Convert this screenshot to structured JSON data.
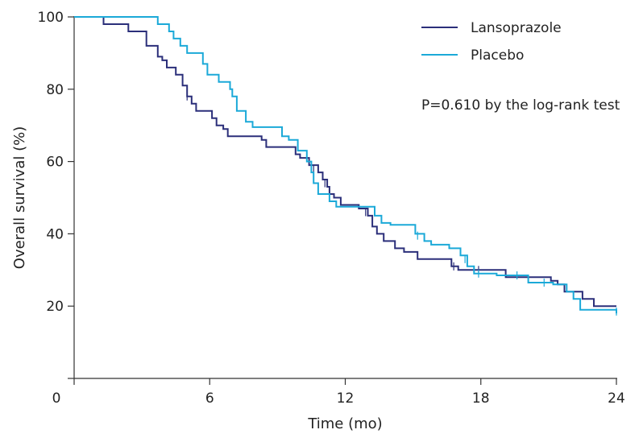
{
  "chart_data": {
    "type": "line",
    "xlabel": "Time (mo)",
    "ylabel": "Overall survival (%)",
    "xlim": [
      0,
      24
    ],
    "ylim": [
      0,
      100
    ],
    "xticks": [
      0,
      6,
      12,
      18,
      24
    ],
    "yticks": [
      20,
      40,
      60,
      80,
      100
    ],
    "x_tick_labels": [
      "0",
      "6",
      "12",
      "18",
      "24"
    ],
    "y_tick_labels": [
      "20",
      "40",
      "60",
      "80",
      "100"
    ],
    "grid": false,
    "legend": "top-right",
    "annotation": "P=0.610 by the log-rank test",
    "series": [
      {
        "name": "Lansoprazole",
        "color": "#2b2f7a",
        "step": true,
        "points": [
          [
            0,
            100
          ],
          [
            1.3,
            98
          ],
          [
            2.4,
            96
          ],
          [
            3.2,
            92
          ],
          [
            3.7,
            89
          ],
          [
            3.9,
            88
          ],
          [
            4.1,
            86
          ],
          [
            4.5,
            84
          ],
          [
            4.8,
            81
          ],
          [
            5.0,
            78
          ],
          [
            5.2,
            76
          ],
          [
            5.4,
            74
          ],
          [
            6.1,
            72
          ],
          [
            6.3,
            70
          ],
          [
            6.6,
            69
          ],
          [
            6.8,
            67
          ],
          [
            8.3,
            66
          ],
          [
            8.5,
            64
          ],
          [
            9.8,
            62
          ],
          [
            10.0,
            61
          ],
          [
            10.4,
            59
          ],
          [
            10.8,
            57
          ],
          [
            11.0,
            55
          ],
          [
            11.2,
            53
          ],
          [
            11.3,
            51
          ],
          [
            11.5,
            50
          ],
          [
            11.8,
            48
          ],
          [
            12.6,
            47
          ],
          [
            13.0,
            45
          ],
          [
            13.2,
            42
          ],
          [
            13.4,
            40
          ],
          [
            13.7,
            38
          ],
          [
            14.2,
            36
          ],
          [
            14.6,
            35
          ],
          [
            15.2,
            33
          ],
          [
            16.7,
            31
          ],
          [
            17.0,
            30
          ],
          [
            19.1,
            28
          ],
          [
            21.1,
            27
          ],
          [
            21.4,
            26
          ],
          [
            21.7,
            24
          ],
          [
            22.5,
            22
          ],
          [
            23.0,
            20
          ],
          [
            24.0,
            20
          ]
        ],
        "censored": [
          [
            5.0,
            78
          ],
          [
            10.6,
            58
          ],
          [
            11.1,
            54
          ],
          [
            12.9,
            46
          ],
          [
            16.8,
            31
          ],
          [
            17.9,
            30
          ]
        ]
      },
      {
        "name": "Placebo",
        "color": "#1ba9d8",
        "step": true,
        "points": [
          [
            0,
            100
          ],
          [
            3.7,
            98
          ],
          [
            4.2,
            96
          ],
          [
            4.4,
            94
          ],
          [
            4.7,
            92
          ],
          [
            5.0,
            90
          ],
          [
            5.7,
            87
          ],
          [
            5.9,
            84
          ],
          [
            6.4,
            82
          ],
          [
            6.9,
            80
          ],
          [
            7.0,
            78
          ],
          [
            7.2,
            74
          ],
          [
            7.6,
            71
          ],
          [
            7.9,
            69.5
          ],
          [
            9.2,
            67
          ],
          [
            9.5,
            66
          ],
          [
            9.9,
            63
          ],
          [
            10.3,
            60
          ],
          [
            10.5,
            57
          ],
          [
            10.6,
            54
          ],
          [
            10.8,
            51
          ],
          [
            11.3,
            49
          ],
          [
            11.6,
            47.5
          ],
          [
            13.3,
            45
          ],
          [
            13.6,
            43
          ],
          [
            14.0,
            42.5
          ],
          [
            15.1,
            40
          ],
          [
            15.5,
            38
          ],
          [
            15.8,
            37
          ],
          [
            16.6,
            36
          ],
          [
            17.1,
            34
          ],
          [
            17.4,
            31
          ],
          [
            17.7,
            29
          ],
          [
            18.7,
            28.5
          ],
          [
            20.1,
            26.5
          ],
          [
            21.2,
            26
          ],
          [
            21.8,
            24
          ],
          [
            22.1,
            22
          ],
          [
            22.4,
            19
          ],
          [
            24.0,
            18
          ]
        ],
        "censored": [
          [
            15.2,
            39.5
          ],
          [
            17.3,
            33
          ],
          [
            17.9,
            29
          ],
          [
            19.6,
            28.5
          ],
          [
            20.8,
            26.5
          ],
          [
            24.0,
            18.5
          ]
        ]
      }
    ]
  }
}
